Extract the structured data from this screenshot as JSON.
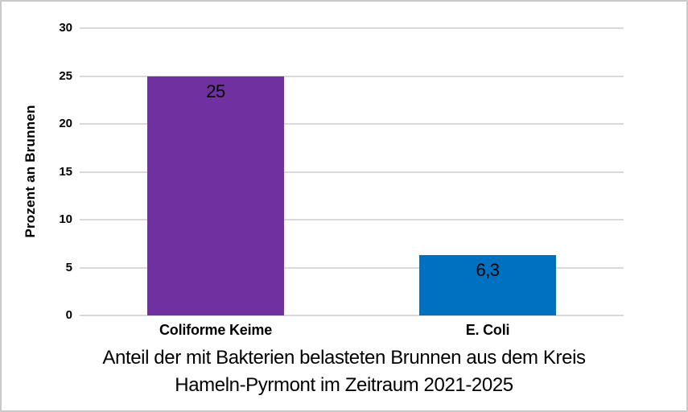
{
  "chart_data": {
    "type": "bar",
    "categories": [
      "Coliforme Keime",
      "E. Coli"
    ],
    "values": [
      25,
      6.3
    ],
    "value_labels": [
      "25",
      "6,3"
    ],
    "series": [
      {
        "name": "Prozent an Brunnen",
        "values": [
          25,
          6.3
        ]
      }
    ],
    "bar_colors": [
      "#7030A0",
      "#0070C0"
    ],
    "title": "Anteil der mit Bakterien belasteten Brunnen aus dem Kreis Hameln-Pyrmont im Zeitraum 2021-2025",
    "title_lines": [
      "Anteil der mit Bakterien belasteten Brunnen aus dem Kreis",
      "Hameln-Pyrmont im Zeitraum 2021-2025"
    ],
    "xlabel": "",
    "ylabel": "Prozent an Brunnen",
    "ylim": [
      0,
      30
    ],
    "yticks": [
      0,
      5,
      10,
      15,
      20,
      25,
      30
    ],
    "ytick_labels": [
      "0",
      "5",
      "10",
      "15",
      "20",
      "25",
      "30"
    ],
    "grid": "horizontal",
    "gridline_color": "#d9d9d9",
    "background_color": "#ffffff",
    "border_color": "#c9c9c9",
    "text_color": "#000000",
    "legend_position": "none",
    "data_label_position": "inside-end"
  }
}
